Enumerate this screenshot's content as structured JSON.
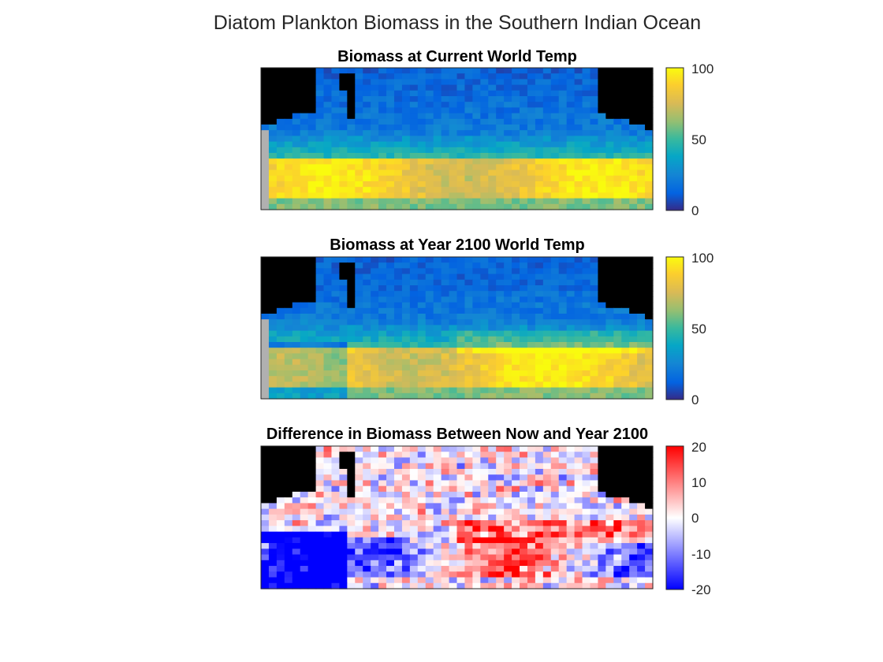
{
  "figure": {
    "title": "Diatom Plankton Biomass in the Southern Indian Ocean"
  },
  "chart_data": [
    {
      "type": "heatmap",
      "title": "Biomass at Current World Temp",
      "colormap": "parula",
      "clim": [
        0,
        100
      ],
      "colorbar_ticks": [
        "100",
        "50",
        "0"
      ],
      "land_color": "#000000",
      "missing_color": "#b0b0b0",
      "description_rows_north_to_south": [
        "low (~10-20) across northern half",
        "gradient ~20-40 in middle latitudes",
        "band of high values ~80-100 in southern quarter",
        "~50-70 along southern edge"
      ],
      "grid_rows": 25,
      "grid_cols": 50
    },
    {
      "type": "heatmap",
      "title": "Biomass at Year 2100 World Temp",
      "colormap": "parula",
      "clim": [
        0,
        100
      ],
      "colorbar_ticks": [
        "100",
        "50",
        "0"
      ],
      "land_color": "#000000",
      "missing_color": "#b0b0b0",
      "grid_rows": 25,
      "grid_cols": 50
    },
    {
      "type": "heatmap",
      "title": "Difference in Biomass Between Now and Year 2100",
      "colormap": "blue-white-red",
      "clim": [
        -20,
        20
      ],
      "colorbar_ticks": [
        "20",
        "10",
        "0",
        "-10",
        "-20"
      ],
      "land_color": "#000000",
      "grid_rows": 25,
      "grid_cols": 50
    }
  ]
}
